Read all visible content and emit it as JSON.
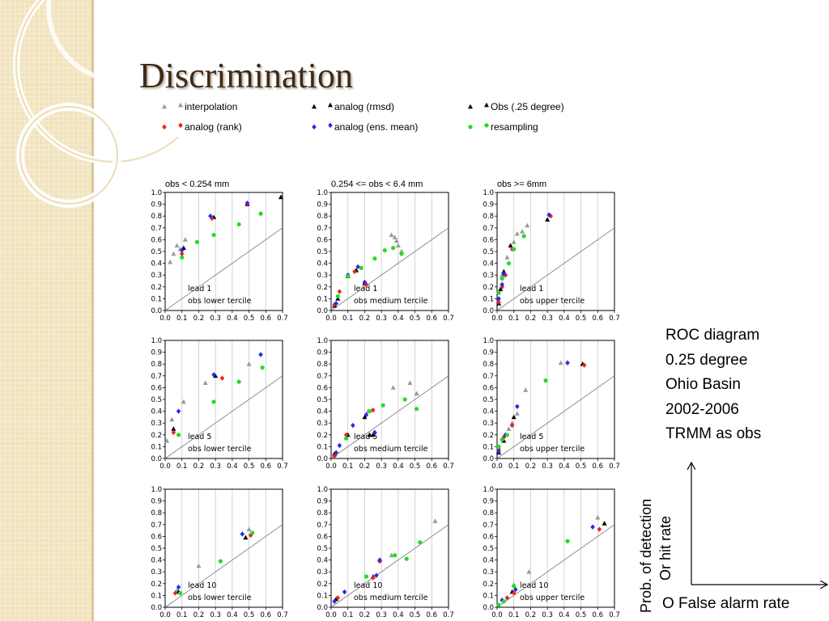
{
  "slide": {
    "title": "Discrimination",
    "info_lines": [
      "ROC diagram",
      "0.25 degree",
      "Ohio Basin",
      "2002-2006",
      "TRMM as obs"
    ],
    "y_axis_line1": "Prob. of detection",
    "y_axis_line2": "Or hit rate",
    "x_axis_label": "O False alarm rate"
  },
  "legend": [
    {
      "name": "interpolation",
      "symbol": "triangle",
      "color": "#9a9a9a"
    },
    {
      "name": "analog (rmsd)",
      "symbol": "triangle",
      "color": "#000000"
    },
    {
      "name": "Obs (.25 degree)",
      "symbol": "triangle",
      "color": "#000000"
    },
    {
      "name": "analog (rank)",
      "symbol": "diamond",
      "color": "#ee2222"
    },
    {
      "name": "analog (ens. mean)",
      "symbol": "diamond",
      "color": "#2a2aee"
    },
    {
      "name": "resampling",
      "symbol": "circle",
      "color": "#22dd22"
    }
  ],
  "chart_data": {
    "type": "scatter",
    "grid": true,
    "xlim": [
      0,
      0.7
    ],
    "ylim": [
      0,
      1
    ],
    "xticks": [
      "0.0",
      "0.1",
      "0.2",
      "0.3",
      "0.4",
      "0.5",
      "0.6",
      "0.7"
    ],
    "yticks": [
      "0.0",
      "0.1",
      "0.2",
      "0.3",
      "0.4",
      "0.5",
      "0.6",
      "0.7",
      "0.8",
      "0.9",
      "1.0"
    ],
    "column_titles": [
      "obs < 0.254 mm",
      "0.254 <= obs < 6.4 mm",
      "obs >= 6mm"
    ],
    "panels": [
      {
        "lead": "lead 1",
        "tercile": "obs lower tercile",
        "series": {
          "interpolation": [
            [
              0.03,
              0.41
            ],
            [
              0.05,
              0.48
            ],
            [
              0.07,
              0.55
            ],
            [
              0.09,
              0.52
            ],
            [
              0.12,
              0.6
            ]
          ],
          "analog (rmsd)": [
            [
              0.11,
              0.53
            ],
            [
              0.29,
              0.79
            ],
            [
              0.49,
              0.9
            ],
            [
              0.69,
              0.96
            ]
          ],
          "analog (rank)": [
            [
              0.1,
              0.48
            ],
            [
              0.28,
              0.78
            ],
            [
              0.49,
              0.9
            ]
          ],
          "analog (ens. mean)": [
            [
              0.1,
              0.51
            ],
            [
              0.27,
              0.8
            ],
            [
              0.49,
              0.91
            ]
          ],
          "resampling": [
            [
              0.1,
              0.45
            ],
            [
              0.19,
              0.58
            ],
            [
              0.29,
              0.64
            ],
            [
              0.44,
              0.73
            ],
            [
              0.57,
              0.82
            ]
          ]
        }
      },
      {
        "lead": "lead 1",
        "tercile": "obs medium tercile",
        "series": {
          "interpolation": [
            [
              0.36,
              0.64
            ],
            [
              0.38,
              0.62
            ],
            [
              0.39,
              0.59
            ],
            [
              0.4,
              0.55
            ],
            [
              0.42,
              0.5
            ]
          ],
          "analog (rmsd)": [
            [
              0.02,
              0.04
            ],
            [
              0.04,
              0.1
            ],
            [
              0.1,
              0.29
            ],
            [
              0.15,
              0.34
            ],
            [
              0.2,
              0.23
            ]
          ],
          "analog (rank)": [
            [
              0.02,
              0.05
            ],
            [
              0.05,
              0.16
            ],
            [
              0.14,
              0.33
            ],
            [
              0.21,
              0.22
            ]
          ],
          "analog (ens. mean)": [
            [
              0.03,
              0.06
            ],
            [
              0.1,
              0.3
            ],
            [
              0.16,
              0.37
            ],
            [
              0.2,
              0.24
            ]
          ],
          "resampling": [
            [
              0.04,
              0.12
            ],
            [
              0.1,
              0.29
            ],
            [
              0.18,
              0.36
            ],
            [
              0.26,
              0.44
            ],
            [
              0.32,
              0.51
            ],
            [
              0.37,
              0.53
            ],
            [
              0.42,
              0.48
            ]
          ]
        }
      },
      {
        "lead": "lead 1",
        "tercile": "obs upper tercile",
        "series": {
          "interpolation": [
            [
              0.03,
              0.3
            ],
            [
              0.06,
              0.45
            ],
            [
              0.1,
              0.58
            ],
            [
              0.12,
              0.65
            ],
            [
              0.15,
              0.67
            ],
            [
              0.18,
              0.72
            ]
          ],
          "analog (rmsd)": [
            [
              0.01,
              0.06
            ],
            [
              0.02,
              0.18
            ],
            [
              0.04,
              0.33
            ],
            [
              0.08,
              0.55
            ],
            [
              0.3,
              0.77
            ]
          ],
          "analog (rank)": [
            [
              0.01,
              0.07
            ],
            [
              0.03,
              0.2
            ],
            [
              0.05,
              0.3
            ],
            [
              0.09,
              0.52
            ],
            [
              0.32,
              0.8
            ]
          ],
          "analog (ens. mean)": [
            [
              0.01,
              0.1
            ],
            [
              0.03,
              0.22
            ],
            [
              0.04,
              0.31
            ],
            [
              0.31,
              0.81
            ]
          ],
          "resampling": [
            [
              0.01,
              0.15
            ],
            [
              0.03,
              0.27
            ],
            [
              0.07,
              0.4
            ],
            [
              0.1,
              0.52
            ],
            [
              0.16,
              0.63
            ]
          ]
        }
      },
      {
        "lead": "lead 5",
        "tercile": "obs lower tercile",
        "series": {
          "interpolation": [
            [
              0.01,
              0.15
            ],
            [
              0.04,
              0.33
            ],
            [
              0.11,
              0.48
            ],
            [
              0.24,
              0.64
            ],
            [
              0.5,
              0.8
            ]
          ],
          "analog (rmsd)": [
            [
              0.05,
              0.25
            ],
            [
              0.3,
              0.7
            ]
          ],
          "analog (rank)": [
            [
              0.05,
              0.22
            ],
            [
              0.34,
              0.68
            ]
          ],
          "analog (ens. mean)": [
            [
              0.08,
              0.4
            ],
            [
              0.29,
              0.71
            ],
            [
              0.57,
              0.88
            ]
          ],
          "resampling": [
            [
              0.08,
              0.2
            ],
            [
              0.29,
              0.48
            ],
            [
              0.44,
              0.65
            ],
            [
              0.58,
              0.77
            ]
          ]
        }
      },
      {
        "lead": "lead 5",
        "tercile": "obs medium tercile",
        "series": {
          "interpolation": [
            [
              0.22,
              0.4
            ],
            [
              0.37,
              0.6
            ],
            [
              0.47,
              0.64
            ],
            [
              0.51,
              0.55
            ]
          ],
          "analog (rmsd)": [
            [
              0.02,
              0.04
            ],
            [
              0.1,
              0.2
            ],
            [
              0.2,
              0.35
            ],
            [
              0.23,
              0.2
            ],
            [
              0.25,
              0.2
            ]
          ],
          "analog (rank)": [
            [
              0.02,
              0.02
            ],
            [
              0.09,
              0.2
            ],
            [
              0.25,
              0.41
            ],
            [
              0.26,
              0.22
            ]
          ],
          "analog (ens. mean)": [
            [
              0.03,
              0.05
            ],
            [
              0.05,
              0.11
            ],
            [
              0.13,
              0.28
            ],
            [
              0.21,
              0.37
            ],
            [
              0.26,
              0.22
            ]
          ],
          "resampling": [
            [
              0.09,
              0.17
            ],
            [
              0.23,
              0.4
            ],
            [
              0.31,
              0.45
            ],
            [
              0.44,
              0.5
            ],
            [
              0.51,
              0.42
            ]
          ]
        }
      },
      {
        "lead": "lead 5",
        "tercile": "obs upper tercile",
        "series": {
          "interpolation": [
            [
              0.07,
              0.25
            ],
            [
              0.09,
              0.3
            ],
            [
              0.12,
              0.38
            ],
            [
              0.17,
              0.58
            ],
            [
              0.38,
              0.81
            ]
          ],
          "analog (rmsd)": [
            [
              0.01,
              0.05
            ],
            [
              0.04,
              0.15
            ],
            [
              0.1,
              0.35
            ],
            [
              0.51,
              0.8
            ]
          ],
          "analog (rank)": [
            [
              0.01,
              0.08
            ],
            [
              0.04,
              0.18
            ],
            [
              0.09,
              0.28
            ],
            [
              0.52,
              0.79
            ]
          ],
          "analog (ens. mean)": [
            [
              0.01,
              0.06
            ],
            [
              0.05,
              0.2
            ],
            [
              0.12,
              0.44
            ],
            [
              0.42,
              0.81
            ]
          ],
          "resampling": [
            [
              0.01,
              0.1
            ],
            [
              0.03,
              0.16
            ],
            [
              0.06,
              0.2
            ],
            [
              0.29,
              0.66
            ]
          ]
        }
      },
      {
        "lead": "lead 10",
        "tercile": "obs lower tercile",
        "series": {
          "interpolation": [
            [
              0.07,
              0.14
            ],
            [
              0.2,
              0.35
            ],
            [
              0.5,
              0.66
            ]
          ],
          "analog (rmsd)": [
            [
              0.08,
              0.13
            ],
            [
              0.48,
              0.59
            ]
          ],
          "analog (rank)": [
            [
              0.06,
              0.12
            ],
            [
              0.51,
              0.61
            ]
          ],
          "analog (ens. mean)": [
            [
              0.08,
              0.17
            ],
            [
              0.46,
              0.62
            ]
          ],
          "resampling": [
            [
              0.09,
              0.12
            ],
            [
              0.33,
              0.39
            ],
            [
              0.52,
              0.63
            ]
          ]
        }
      },
      {
        "lead": "lead 10",
        "tercile": "obs medium tercile",
        "series": {
          "interpolation": [
            [
              0.36,
              0.44
            ],
            [
              0.62,
              0.73
            ]
          ],
          "analog (rmsd)": [
            [
              0.03,
              0.07
            ],
            [
              0.25,
              0.26
            ],
            [
              0.29,
              0.4
            ]
          ],
          "analog (rank)": [
            [
              0.04,
              0.08
            ],
            [
              0.25,
              0.25
            ],
            [
              0.29,
              0.39
            ]
          ],
          "analog (ens. mean)": [
            [
              0.02,
              0.05
            ],
            [
              0.08,
              0.13
            ],
            [
              0.27,
              0.27
            ],
            [
              0.29,
              0.4
            ]
          ],
          "resampling": [
            [
              0.21,
              0.26
            ],
            [
              0.38,
              0.44
            ],
            [
              0.45,
              0.41
            ],
            [
              0.53,
              0.55
            ]
          ]
        }
      },
      {
        "lead": "lead 10",
        "tercile": "obs upper tercile",
        "series": {
          "interpolation": [
            [
              0.1,
              0.19
            ],
            [
              0.19,
              0.3
            ],
            [
              0.6,
              0.76
            ]
          ],
          "analog (rmsd)": [
            [
              0.09,
              0.13
            ],
            [
              0.64,
              0.71
            ]
          ],
          "analog (rank)": [
            [
              0.06,
              0.08
            ],
            [
              0.1,
              0.12
            ],
            [
              0.61,
              0.66
            ]
          ],
          "analog (ens. mean)": [
            [
              0.03,
              0.06
            ],
            [
              0.11,
              0.15
            ],
            [
              0.57,
              0.68
            ]
          ],
          "resampling": [
            [
              0.01,
              0.02
            ],
            [
              0.04,
              0.05
            ],
            [
              0.1,
              0.18
            ],
            [
              0.42,
              0.56
            ]
          ]
        }
      }
    ]
  }
}
